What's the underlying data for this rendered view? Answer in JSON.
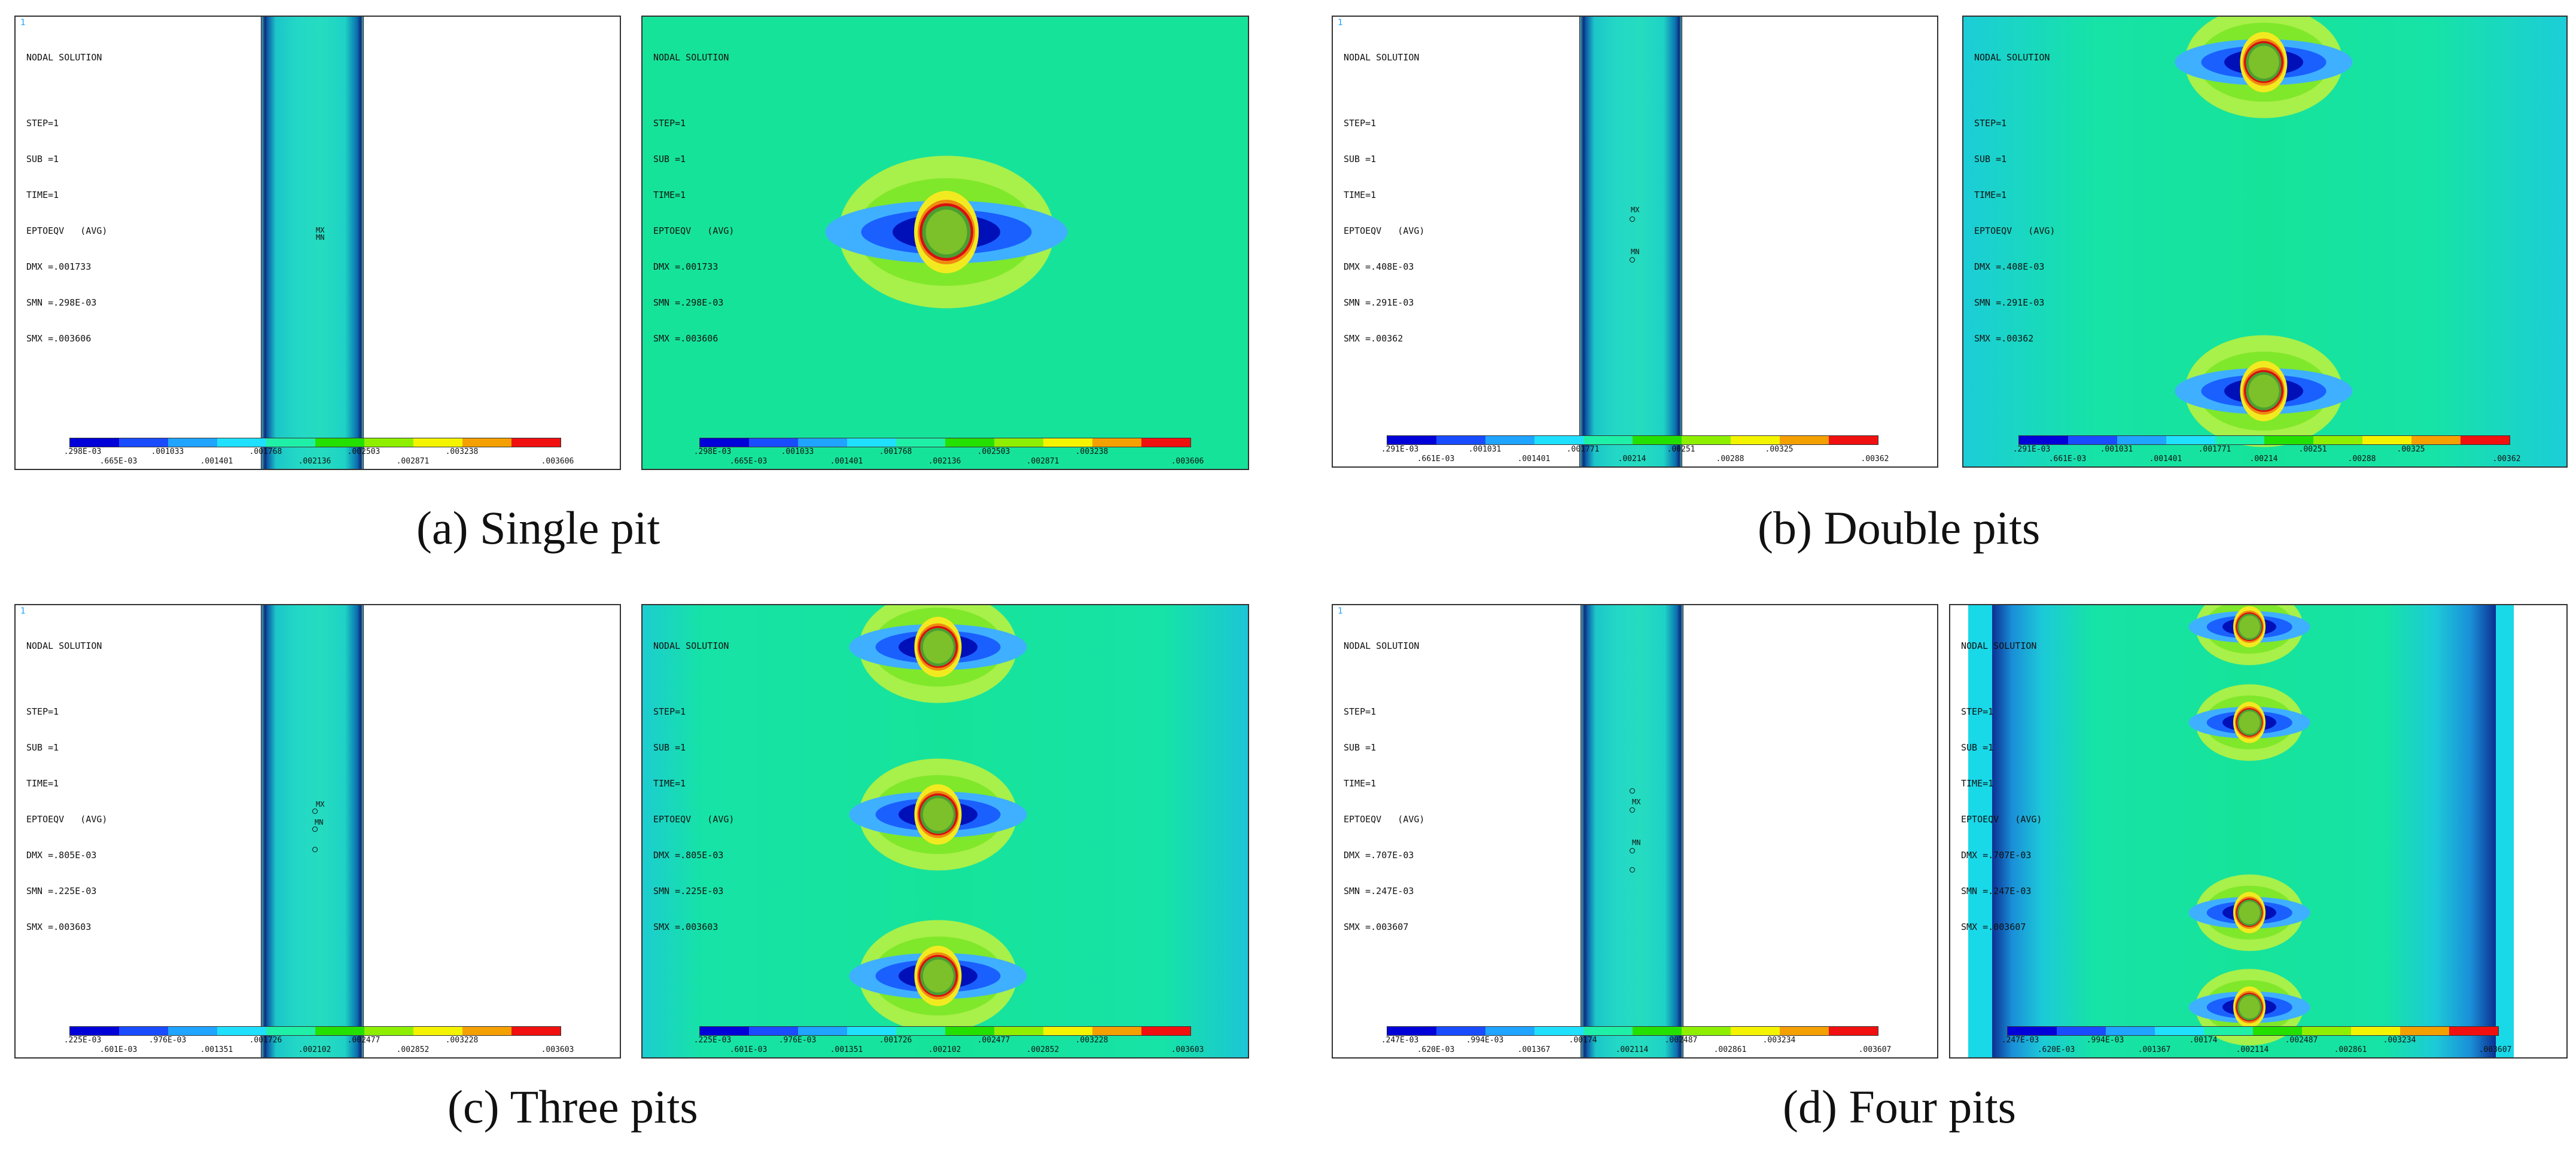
{
  "panels_text": {
    "title": "NODAL SOLUTION",
    "index": "1",
    "step": "STEP=1",
    "sub": "SUB =1",
    "time": "TIME=1",
    "quantity": "EPTOEQV   (AVG)",
    "mx": "MX",
    "mn": "MN"
  },
  "legend_colors": [
    "#0000d8",
    "#1a4cff",
    "#1fa4ff",
    "#20e0ff",
    "#1ff0a8",
    "#24e000",
    "#8ef000",
    "#f4f400",
    "#f4a000",
    "#f01010"
  ],
  "cases": [
    {
      "caption": "(a) Single pit",
      "dmx": "DMX =.001733",
      "smn": "SMN =.298E-03",
      "smx": "SMX =.003606",
      "ticks_top": [
        ".298E-03",
        ".001033",
        ".001768",
        ".002503",
        ".003238"
      ],
      "ticks_bot": [
        ".665E-03",
        ".001401",
        ".002136",
        ".002871",
        ".003606"
      ]
    },
    {
      "caption": "(b) Double pits",
      "dmx": "DMX =.408E-03",
      "smn": "SMN =.291E-03",
      "smx": "SMX =.00362",
      "ticks_top": [
        ".291E-03",
        ".001031",
        ".001771",
        ".00251",
        ".00325"
      ],
      "ticks_bot": [
        ".661E-03",
        ".001401",
        ".00214",
        ".00288",
        ".00362"
      ]
    },
    {
      "caption": "(c) Three pits",
      "dmx": "DMX =.805E-03",
      "smn": "SMN =.225E-03",
      "smx": "SMX =.003603",
      "ticks_top": [
        ".225E-03",
        ".976E-03",
        ".001726",
        ".002477",
        ".003228"
      ],
      "ticks_bot": [
        ".601E-03",
        ".001351",
        ".002102",
        ".002852",
        ".003603"
      ]
    },
    {
      "caption": "(d) Four pits",
      "dmx": "DMX =.707E-03",
      "smn": "SMN =.247E-03",
      "smx": "SMX =.003607",
      "ticks_top": [
        ".247E-03",
        ".994E-03",
        ".00174",
        ".002487",
        ".003234"
      ],
      "ticks_bot": [
        ".620E-03",
        ".001367",
        ".002114",
        ".002861",
        ".003607"
      ]
    }
  ]
}
